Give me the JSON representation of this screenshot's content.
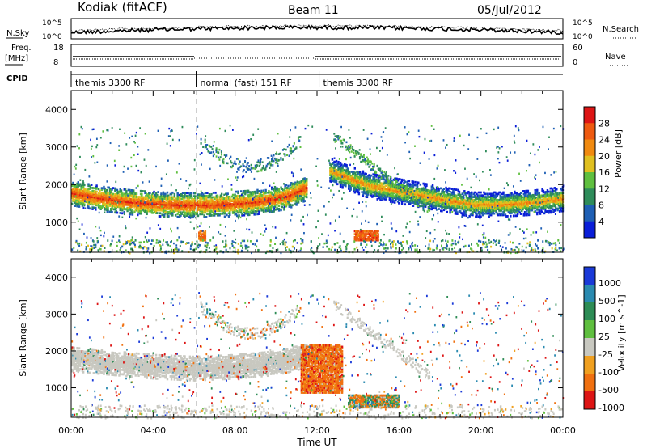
{
  "header": {
    "station": "Kodiak (fitACF)",
    "beam": "Beam 11",
    "date": "05/Jul/2012"
  },
  "noise_panel": {
    "left_label": "N.Sky",
    "right_label": "N.Search",
    "left_ticks": [
      "10^5",
      "10^0"
    ],
    "right_ticks": [
      "10^5",
      "10^0"
    ]
  },
  "freq_panel": {
    "left_label_1": "Freq.",
    "left_label_2": "[MHz]",
    "right_label": "Nave",
    "left_ticks": [
      "18",
      "8"
    ],
    "right_ticks": [
      "60",
      "0"
    ]
  },
  "cpid_panel": {
    "label": "CPID",
    "segments": [
      {
        "label": "themis 3300 RF",
        "start_hr": 0,
        "end_hr": 6.1
      },
      {
        "label": "normal (fast) 151 RF",
        "start_hr": 6.1,
        "end_hr": 12.1
      },
      {
        "label": "themis 3300 RF",
        "start_hr": 12.1,
        "end_hr": 24
      }
    ]
  },
  "chart_data": [
    {
      "type": "heatmap",
      "name": "power",
      "ylabel": "Slant Range [km]",
      "yticks": [
        "1000",
        "2000",
        "3000",
        "4000"
      ],
      "ylim": [
        200,
        4500
      ],
      "xlim": [
        0,
        24
      ],
      "colorbar": {
        "label": "Power [dB]",
        "ticks": [
          "4",
          "8",
          "12",
          "16",
          "20",
          "24",
          "28"
        ],
        "colors": [
          "#0a1ed8",
          "#1e5fb4",
          "#2e8c5a",
          "#5fbf3f",
          "#e0c020",
          "#f08a10",
          "#ee5a10",
          "#dd1515"
        ]
      },
      "features": [
        {
          "kind": "band",
          "t": [
            0,
            1.5,
            3,
            4.5,
            6,
            7.5,
            9,
            10.5,
            11.5
          ],
          "r": [
            1800,
            1650,
            1550,
            1500,
            1480,
            1500,
            1560,
            1700,
            1950
          ],
          "level": 20
        },
        {
          "kind": "band",
          "t": [
            12.6,
            13.5,
            14.5,
            15.5,
            16.5,
            18,
            19.5,
            21,
            22.5,
            24
          ],
          "r": [
            2400,
            2200,
            2000,
            1900,
            1800,
            1650,
            1500,
            1500,
            1550,
            1650
          ],
          "level": 14
        },
        {
          "kind": "patch",
          "t": [
            13.8,
            15.0
          ],
          "r": [
            550,
            800
          ],
          "level": 26
        },
        {
          "kind": "patch",
          "t": [
            6.2,
            6.5
          ],
          "r": [
            550,
            800
          ],
          "level": 24
        }
      ]
    },
    {
      "type": "heatmap",
      "name": "velocity",
      "xlabel": "Time UT",
      "ylabel": "Slant Range [km]",
      "xticks": [
        "00:00",
        "04:00",
        "08:00",
        "12:00",
        "16:00",
        "20:00",
        "00:00"
      ],
      "yticks": [
        "1000",
        "2000",
        "3000",
        "4000"
      ],
      "ylim": [
        200,
        4500
      ],
      "xlim": [
        0,
        24
      ],
      "colorbar": {
        "label": "Velocity [m s^-1]",
        "ticks": [
          "1000",
          "500",
          "100",
          "25",
          "-25",
          "-100",
          "-500",
          "-1000"
        ],
        "colors": [
          "#1a3ad8",
          "#2a8ab0",
          "#2d8c55",
          "#5fbf3f",
          "#c8c8c0",
          "#f0a020",
          "#f07010",
          "#dd1515"
        ]
      },
      "features": [
        {
          "kind": "band",
          "t": [
            0,
            2,
            4,
            6,
            8,
            10,
            11.5
          ],
          "r": [
            1800,
            1700,
            1600,
            1550,
            1600,
            1700,
            1900
          ],
          "level": 0
        },
        {
          "kind": "patch",
          "t": [
            11.2,
            13.2
          ],
          "r": [
            900,
            2200
          ],
          "level": -300
        },
        {
          "kind": "patch",
          "t": [
            13.5,
            16
          ],
          "r": [
            500,
            850
          ],
          "level": 0
        }
      ]
    }
  ]
}
